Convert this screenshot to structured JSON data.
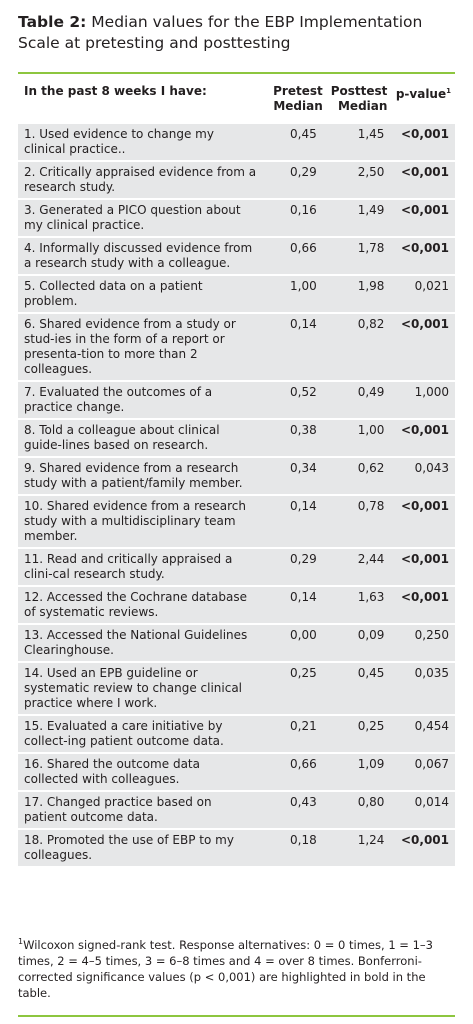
{
  "title": {
    "label": "Table 2:",
    "text": "Median values for the EBP Implementation Scale at pretesting and posttesting"
  },
  "headers": {
    "item": "In the past 8 weeks I have:",
    "pre": [
      "Pretest",
      "Median"
    ],
    "post": [
      "Posttest",
      "Median"
    ],
    "pval": "p-value",
    "pval_sup": "1"
  },
  "rows": [
    {
      "item": "1. Used evidence to change my clinical practice..",
      "pre": "0,45",
      "post": "1,45",
      "p": "<0,001",
      "bold": true
    },
    {
      "item": "2. Critically appraised evidence from a research study.",
      "pre": "0,29",
      "post": "2,50",
      "p": "<0,001",
      "bold": true
    },
    {
      "item": "3. Generated a PICO question about my clinical practice.",
      "pre": "0,16",
      "post": "1,49",
      "p": "<0,001",
      "bold": true
    },
    {
      "item": "4. Informally discussed evidence from a research study with a colleague.",
      "pre": "0,66",
      "post": "1,78",
      "p": "<0,001",
      "bold": true
    },
    {
      "item": "5. Collected data on a patient problem.",
      "pre": "1,00",
      "post": "1,98",
      "p": "0,021",
      "bold": false
    },
    {
      "item": "6. Shared evidence from a study or stud-ies in the form of a report or presenta-tion to more than 2 colleagues.",
      "pre": "0,14",
      "post": "0,82",
      "p": "<0,001",
      "bold": true
    },
    {
      "item": "7. Evaluated the outcomes of a practice change.",
      "pre": "0,52",
      "post": "0,49",
      "p": "1,000",
      "bold": false
    },
    {
      "item": "8. Told a colleague about clinical guide-lines based on research.",
      "pre": "0,38",
      "post": "1,00",
      "p": "<0,001",
      "bold": true
    },
    {
      "item": "9. Shared evidence from a research study with a patient/family member.",
      "pre": "0,34",
      "post": "0,62",
      "p": "0,043",
      "bold": false
    },
    {
      "item": "10. Shared evidence from a research study with a multidisciplinary team member.",
      "pre": "0,14",
      "post": "0,78",
      "p": "<0,001",
      "bold": true
    },
    {
      "item": "11. Read and critically appraised a clini-cal research study.",
      "pre": "0,29",
      "post": "2,44",
      "p": "<0,001",
      "bold": true
    },
    {
      "item": "12. Accessed the Cochrane database of systematic reviews.",
      "pre": "0,14",
      "post": "1,63",
      "p": "<0,001",
      "bold": true
    },
    {
      "item": "13. Accessed the National Guidelines Clearinghouse.",
      "pre": "0,00",
      "post": "0,09",
      "p": "0,250",
      "bold": false
    },
    {
      "item": "14. Used an EPB guideline or systematic review to change clinical practice where I work.",
      "pre": "0,25",
      "post": "0,45",
      "p": "0,035",
      "bold": false
    },
    {
      "item": "15. Evaluated a care initiative by collect-ing patient outcome data.",
      "pre": "0,21",
      "post": "0,25",
      "p": "0,454",
      "bold": false
    },
    {
      "item": "16. Shared the outcome data collected with colleagues.",
      "pre": "0,66",
      "post": "1,09",
      "p": "0,067",
      "bold": false
    },
    {
      "item": "17. Changed practice based on patient outcome data.",
      "pre": "0,43",
      "post": "0,80",
      "p": "0,014",
      "bold": false
    },
    {
      "item": "18. Promoted the use of EBP to my colleagues.",
      "pre": "0,18",
      "post": "1,24",
      "p": "<0,001",
      "bold": true
    }
  ],
  "footnote": {
    "sup": "1",
    "text": "Wilcoxon signed-rank test. Response alternatives: 0 = 0 times, 1 = 1–3 times, 2 = 4–5 times, 3 = 6–8 times and 4 = over 8 times. Bonferroni-corrected significance values (p < 0,001) are highlighted in bold in the table."
  },
  "colors": {
    "accent_rule": "#8dc63f",
    "row_shade": "#e6e7e8",
    "text": "#231f20"
  }
}
